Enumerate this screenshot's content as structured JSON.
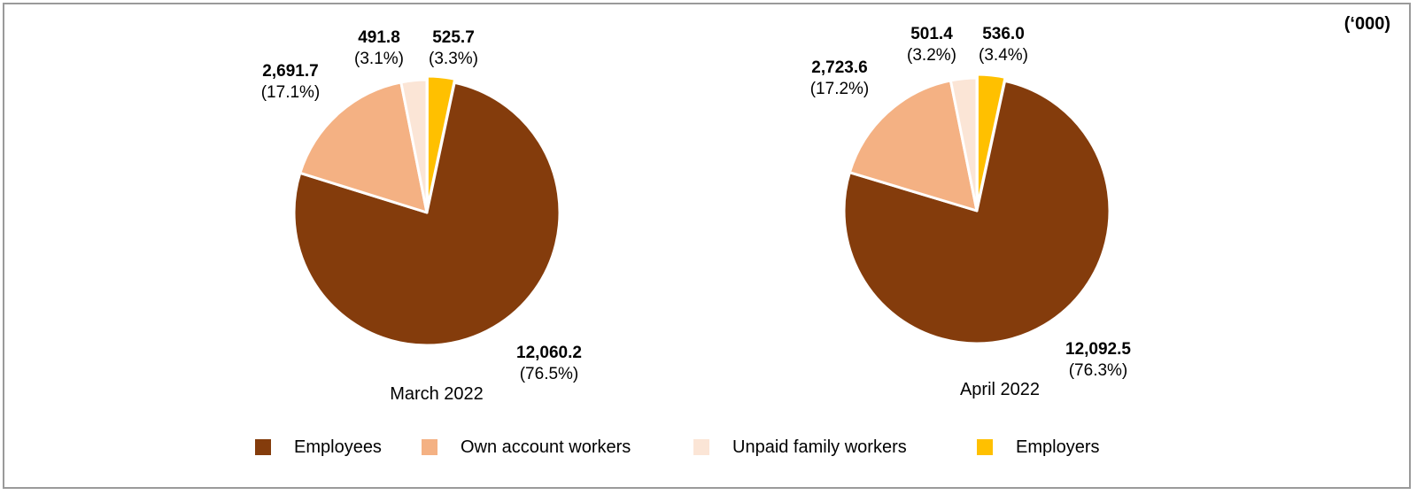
{
  "unit": "(‘000)",
  "colors": {
    "Employees": "#843C0C",
    "Own account workers": "#F4B183",
    "Unpaid family workers": "#FBE5D6",
    "Employers": "#FFC000"
  },
  "legend": [
    "Employees",
    "Own account workers",
    "Unpaid family workers",
    "Employers"
  ],
  "chart_data": [
    {
      "type": "pie",
      "title": "March 2022",
      "slices": [
        {
          "label": "Employers",
          "value": 525.7,
          "value_text": "525.7",
          "percent_text": "(3.3%)"
        },
        {
          "label": "Employees",
          "value": 12060.2,
          "value_text": "12,060.2",
          "percent_text": "(76.5%)"
        },
        {
          "label": "Own account workers",
          "value": 2691.7,
          "value_text": "2,691.7",
          "percent_text": "(17.1%)"
        },
        {
          "label": "Unpaid family workers",
          "value": 491.8,
          "value_text": "491.8",
          "percent_text": "(3.1%)"
        }
      ]
    },
    {
      "type": "pie",
      "title": "April 2022",
      "slices": [
        {
          "label": "Employers",
          "value": 536.0,
          "value_text": "536.0",
          "percent_text": "(3.4%)"
        },
        {
          "label": "Employees",
          "value": 12092.5,
          "value_text": "12,092.5",
          "percent_text": "(76.3%)"
        },
        {
          "label": "Own account workers",
          "value": 2723.6,
          "value_text": "2,723.6",
          "percent_text": "(17.2%)"
        },
        {
          "label": "Unpaid family workers",
          "value": 501.4,
          "value_text": "501.4",
          "percent_text": "(3.2%)"
        }
      ]
    }
  ]
}
